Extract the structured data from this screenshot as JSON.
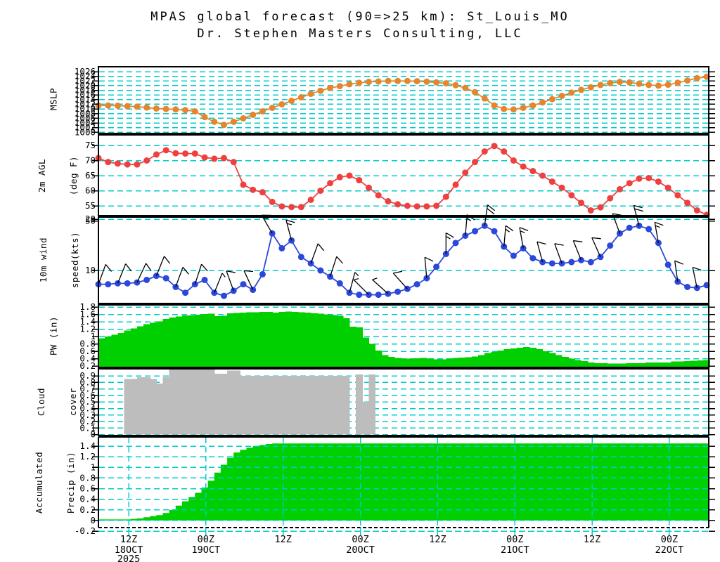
{
  "title": {
    "line1": "MPAS global forecast (90=>25 km): St_Louis_MO",
    "line2": "Dr. Stephen Masters Consulting, LLC"
  },
  "colors": {
    "grid": "#00CCCC",
    "mslp": "#E5862E",
    "temperature": "#EE4040",
    "wind": "#2B48DB",
    "green": "#00CF00",
    "cloud": "#BDBDBD",
    "axis": "#000000"
  },
  "panel_labels": {
    "mslp": "MSLP",
    "t2m_line1": "2m AGL",
    "t2m_line2": "(deg F)",
    "wind_line1": "10m wind",
    "wind_line2": "speed(kts)",
    "pw": "PW (in)",
    "cloud_line1": "Cloud",
    "cloud_line2": "cover",
    "precip_line1": "Accumulated",
    "precip_line2": "Precip (in)"
  },
  "chart_data": {
    "type": "meteogram",
    "x_axis": {
      "total_hours": 94.8,
      "ticks": [
        {
          "hour": 4.7,
          "line1": "12Z",
          "line2": "18OCT",
          "line3": "2025"
        },
        {
          "hour": 16.7,
          "line1": "00Z",
          "line2": "19OCT",
          "line3": ""
        },
        {
          "hour": 28.7,
          "line1": "12Z",
          "line2": "",
          "line3": ""
        },
        {
          "hour": 40.7,
          "line1": "00Z",
          "line2": "20OCT",
          "line3": ""
        },
        {
          "hour": 52.7,
          "line1": "12Z",
          "line2": "",
          "line3": ""
        },
        {
          "hour": 64.7,
          "line1": "00Z",
          "line2": "21OCT",
          "line3": ""
        },
        {
          "hour": 76.7,
          "line1": "12Z",
          "line2": "",
          "line3": ""
        },
        {
          "hour": 88.7,
          "line1": "00Z",
          "line2": "22OCT",
          "line3": ""
        }
      ]
    },
    "panels": [
      {
        "id": "mslp",
        "type": "line",
        "series_name": "MSLP",
        "unit": "hPa",
        "interval_hours": 1.5,
        "yticks": [
          1026,
          1024,
          1022,
          1020,
          1018,
          1016,
          1014,
          1012,
          1010,
          1008,
          1006,
          1004,
          1002,
          1000
        ],
        "values": [
          1011.5,
          1011.5,
          1011.4,
          1011.2,
          1011.0,
          1010.6,
          1010.2,
          1010.0,
          1009.8,
          1009.5,
          1009.0,
          1006.5,
          1004.5,
          1003.2,
          1004.5,
          1006.0,
          1007.5,
          1009.0,
          1010.5,
          1012.0,
          1013.5,
          1015.0,
          1016.5,
          1017.8,
          1019.0,
          1019.8,
          1020.6,
          1021.2,
          1021.6,
          1021.8,
          1022.0,
          1022.0,
          1022.0,
          1021.9,
          1021.7,
          1021.4,
          1021.0,
          1020.2,
          1019.0,
          1017.2,
          1014.5,
          1011.5,
          1010.0,
          1009.8,
          1010.5,
          1011.5,
          1012.8,
          1014.2,
          1015.6,
          1017.0,
          1018.2,
          1019.3,
          1020.3,
          1021.1,
          1021.6,
          1021.4,
          1020.8,
          1020.3,
          1020.0,
          1020.4,
          1021.2,
          1022.2,
          1023.2,
          1023.8
        ]
      },
      {
        "id": "t2m",
        "type": "line",
        "series_name": "2m AGL (deg F)",
        "unit": "deg F",
        "interval_hours": 1.5,
        "yticks": [
          75,
          70,
          65,
          60,
          55,
          50
        ],
        "values": [
          70.8,
          69.5,
          69.0,
          68.7,
          68.7,
          70.0,
          72.0,
          73.4,
          72.4,
          72.3,
          72.3,
          71.0,
          70.6,
          70.8,
          69.5,
          62.0,
          60.3,
          59.5,
          56.3,
          54.8,
          54.6,
          54.6,
          57.0,
          60.0,
          62.5,
          64.5,
          65.0,
          63.5,
          61.0,
          58.5,
          56.5,
          55.5,
          55.0,
          54.8,
          54.8,
          55.0,
          58.0,
          62.0,
          66.0,
          69.5,
          73.0,
          74.8,
          73.0,
          70.0,
          68.0,
          66.5,
          65.0,
          63.0,
          61.0,
          58.5,
          56.0,
          53.5,
          54.5,
          57.5,
          60.5,
          62.5,
          64.0,
          64.2,
          63.0,
          61.0,
          58.5,
          56.0,
          53.5,
          52.0
        ]
      },
      {
        "id": "wind10m",
        "type": "line_barbs",
        "series_name": "10m wind speed(kts)",
        "unit": "kts",
        "scale": "log2",
        "interval_hours": 1.5,
        "yticks": [
          20,
          10
        ],
        "values": [
          8.3,
          8.3,
          8.4,
          8.4,
          8.5,
          8.8,
          9.3,
          9.0,
          8.0,
          7.4,
          8.3,
          8.8,
          7.4,
          7.1,
          7.6,
          8.3,
          7.7,
          9.5,
          16.5,
          13.5,
          15.0,
          12.0,
          11.0,
          10.0,
          9.2,
          8.4,
          7.4,
          7.2,
          7.2,
          7.2,
          7.3,
          7.5,
          7.8,
          8.3,
          9.0,
          10.5,
          12.5,
          14.5,
          16.0,
          17.0,
          18.3,
          17.0,
          13.8,
          12.2,
          13.5,
          11.8,
          11.2,
          11.0,
          11.0,
          11.2,
          11.5,
          11.2,
          12.0,
          14.0,
          16.5,
          17.8,
          18.3,
          17.5,
          14.5,
          10.8,
          8.6,
          8.0,
          7.9,
          8.2
        ],
        "barb_interval_hours": 3,
        "barb_dirs_deg": [
          20,
          22,
          25,
          22,
          20,
          18,
          22,
          340,
          335,
          330,
          345,
          20,
          18,
          15,
          315,
          312,
          318,
          355,
          0,
          5,
          8,
          5,
          350,
          345,
          340,
          338,
          336,
          340,
          345,
          350,
          352,
          348
        ]
      },
      {
        "id": "pw",
        "type": "bars",
        "series_name": "PW (in)",
        "unit": "in",
        "interval_hours": 1,
        "yticks": [
          1.8,
          1.6,
          1.4,
          1.2,
          1,
          0.8,
          0.6,
          0.4,
          0.2
        ],
        "values": [
          0.95,
          1.0,
          1.05,
          1.1,
          1.16,
          1.22,
          1.28,
          1.33,
          1.37,
          1.41,
          1.48,
          1.51,
          1.54,
          1.57,
          1.57,
          1.59,
          1.61,
          1.62,
          1.55,
          1.56,
          1.63,
          1.64,
          1.65,
          1.66,
          1.66,
          1.67,
          1.67,
          1.65,
          1.67,
          1.68,
          1.67,
          1.66,
          1.65,
          1.63,
          1.62,
          1.6,
          1.58,
          1.56,
          1.5,
          1.27,
          1.25,
          0.97,
          0.8,
          0.62,
          0.5,
          0.45,
          0.42,
          0.4,
          0.4,
          0.41,
          0.42,
          0.4,
          0.38,
          0.38,
          0.4,
          0.42,
          0.43,
          0.44,
          0.46,
          0.5,
          0.55,
          0.58,
          0.62,
          0.66,
          0.68,
          0.7,
          0.71,
          0.7,
          0.66,
          0.6,
          0.55,
          0.5,
          0.45,
          0.4,
          0.36,
          0.33,
          0.3,
          0.28,
          0.28,
          0.27,
          0.27,
          0.27,
          0.28,
          0.28,
          0.28,
          0.3,
          0.3,
          0.3,
          0.3,
          0.32,
          0.32,
          0.33,
          0.34,
          0.35,
          0.36
        ]
      },
      {
        "id": "cloud",
        "type": "bars",
        "series_name": "Cloud cover",
        "unit": "fraction",
        "interval_hours": 1,
        "yticks": [
          0.9,
          0.8,
          0.7,
          0.6,
          0.5,
          0.4,
          0.3,
          0.2,
          0.1,
          0
        ],
        "values": [
          0,
          0,
          0,
          0,
          0.85,
          0.85,
          0.88,
          0.88,
          0.85,
          0.78,
          0.88,
          1.0,
          1.0,
          1.0,
          1.0,
          1.0,
          1.0,
          1.0,
          0.93,
          0.93,
          0.98,
          0.98,
          0.9,
          0.9,
          0.9,
          0.9,
          0.9,
          0.9,
          0.9,
          0.9,
          0.9,
          0.9,
          0.9,
          0.9,
          0.9,
          0.9,
          0.9,
          0.9,
          0.9,
          0,
          0.92,
          0.5,
          0.92,
          0,
          0,
          0,
          0,
          0,
          0,
          0,
          0,
          0,
          0,
          0,
          0,
          0,
          0,
          0,
          0,
          0,
          0,
          0,
          0,
          0,
          0,
          0,
          0,
          0,
          0,
          0,
          0,
          0,
          0,
          0,
          0,
          0,
          0,
          0,
          0,
          0,
          0,
          0,
          0,
          0,
          0,
          0,
          0,
          0,
          0,
          0,
          0,
          0,
          0,
          0,
          0
        ]
      },
      {
        "id": "precip",
        "type": "area_steps",
        "series_name": "Accumulated Precip (in)",
        "unit": "in",
        "interval_hours": 1,
        "yticks": [
          1.4,
          1.2,
          1,
          0.8,
          0.6,
          0.4,
          0.2,
          0,
          -0.2
        ],
        "values": [
          0.02,
          0.02,
          0.02,
          0.02,
          0.02,
          0.03,
          0.04,
          0.06,
          0.08,
          0.1,
          0.14,
          0.2,
          0.28,
          0.36,
          0.44,
          0.52,
          0.62,
          0.75,
          0.9,
          1.05,
          1.18,
          1.28,
          1.33,
          1.37,
          1.4,
          1.42,
          1.44,
          1.45,
          1.45,
          1.45,
          1.45,
          1.45,
          1.45,
          1.45,
          1.45,
          1.45,
          1.45,
          1.45,
          1.45,
          1.45,
          1.45,
          1.45,
          1.45,
          1.45,
          1.45,
          1.45,
          1.45,
          1.45,
          1.45,
          1.45,
          1.45,
          1.45,
          1.45,
          1.45,
          1.45,
          1.45,
          1.45,
          1.45,
          1.45,
          1.45,
          1.45,
          1.45,
          1.45,
          1.45,
          1.45,
          1.45,
          1.45,
          1.45,
          1.45,
          1.45,
          1.45,
          1.45,
          1.45,
          1.45,
          1.45,
          1.45,
          1.45,
          1.45,
          1.45,
          1.45,
          1.45,
          1.45,
          1.45,
          1.45,
          1.45,
          1.45,
          1.45,
          1.45,
          1.45,
          1.45,
          1.45,
          1.45,
          1.45,
          1.45,
          1.45
        ]
      }
    ]
  }
}
